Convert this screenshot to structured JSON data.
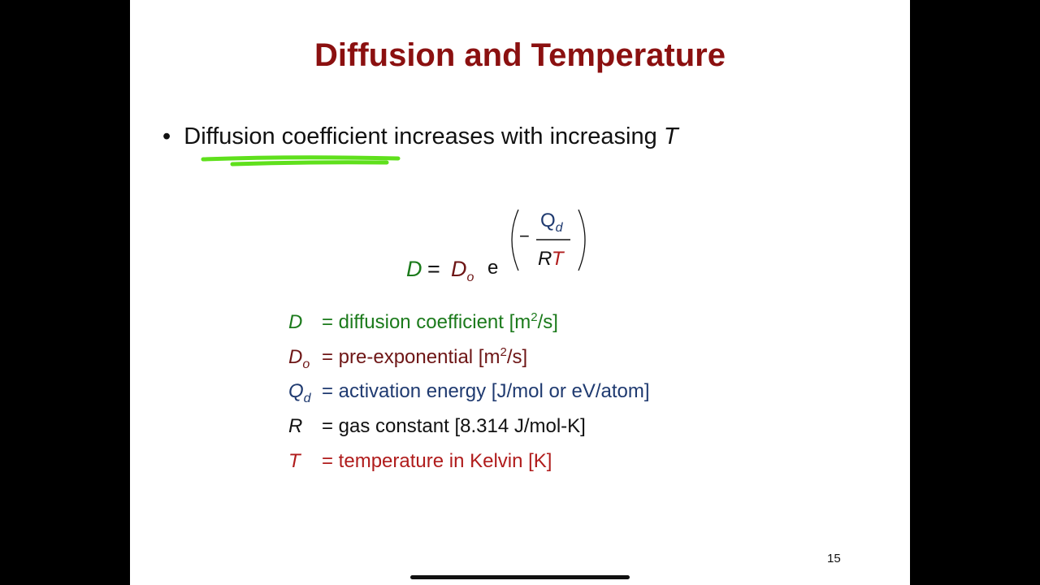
{
  "slide": {
    "title": "Diffusion and Temperature",
    "bullet": {
      "highlight": "Diffusion coefficient",
      "rest": "increases with increasing",
      "variable": "T"
    },
    "equation": {
      "lhs": "D",
      "equals": "=",
      "prefactor": "D",
      "prefactor_sub": "o",
      "base": "e",
      "minus": "−",
      "numerator": "Q",
      "numerator_sub": "d",
      "denominator_r": "R",
      "denominator_t": "T"
    },
    "definitions": [
      {
        "symbol": "D",
        "text": "= diffusion coefficient [m",
        "sup": "2",
        "after": "/s]"
      },
      {
        "symbol": "D",
        "sub": "o",
        "text": "= pre-exponential [m",
        "sup": "2",
        "after": "/s]"
      },
      {
        "symbol": "Q",
        "sub": "d",
        "text": "= activation energy [J/mol or eV/atom]"
      },
      {
        "symbol": "R",
        "text": "= gas constant [8.314 J/mol-K]"
      },
      {
        "symbol": "T",
        "text": "= temperature in Kelvin [K]"
      }
    ],
    "page_number": "15"
  }
}
